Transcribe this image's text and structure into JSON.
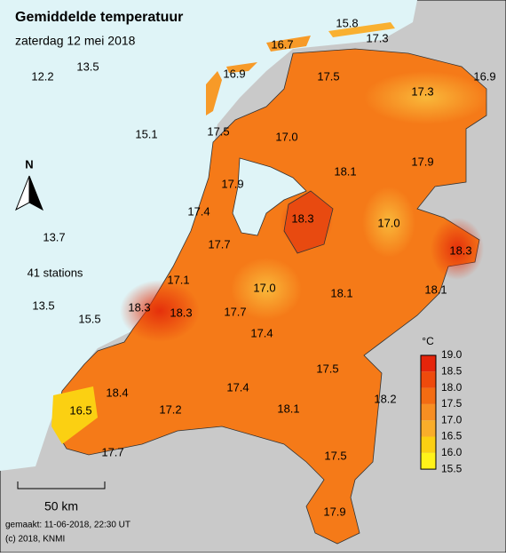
{
  "header": {
    "title": "Gemiddelde temperatuur",
    "subtitle": "zaterdag 12 mei 2018"
  },
  "stations": [
    "15.8",
    "16.7",
    "17.3",
    "13.5",
    "12.2",
    "16.9",
    "17.5",
    "16.9",
    "17.3",
    "15.1",
    "17.5",
    "17.0",
    "18.1",
    "17.9",
    "17.9",
    "17.4",
    "18.3",
    "17.0",
    "13.7",
    "18.3",
    "17.7",
    "17.1",
    "17.0",
    "18.1",
    "18.1",
    "13.5",
    "18.3",
    "18.3",
    "17.7",
    "15.5",
    "17.4",
    "17.5",
    "17.4",
    "18.4",
    "18.2",
    "16.5",
    "17.2",
    "18.1",
    "17.7",
    "17.5",
    "17.9"
  ],
  "station_count": "41 stations",
  "north": "N",
  "scale": "50 km",
  "legend": {
    "unit": "°C",
    "ticks": [
      "19.0",
      "18.5",
      "18.0",
      "17.5",
      "17.0",
      "16.5",
      "16.0",
      "15.5"
    ],
    "colors": [
      "#e5250b",
      "#ee4a0c",
      "#f36c12",
      "#f78e22",
      "#f9ad2a",
      "#fbcf12",
      "#fff21a"
    ]
  },
  "footer": {
    "made": "gemaakt: 11-06-2018, 22:30 UT",
    "copyright": "(c) 2018, KNMI"
  }
}
